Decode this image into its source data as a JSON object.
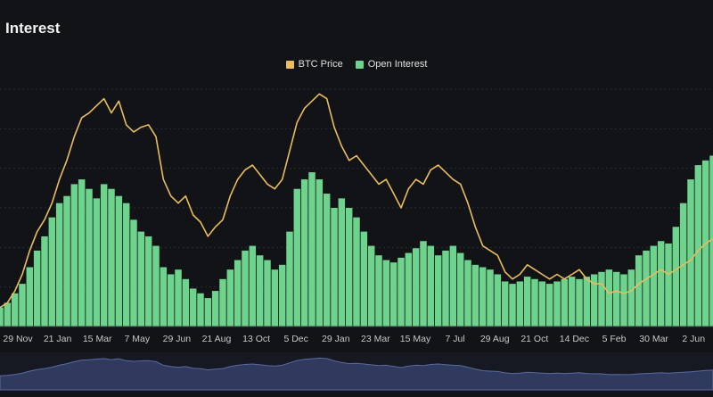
{
  "header": {
    "title": "Interest"
  },
  "colors": {
    "price": "#e9bd5b",
    "oi": "#6ed38c",
    "navigator": "#2f3a5e",
    "navigator_line": "#5a6aa0",
    "grid": "#2a2d33"
  },
  "chart_data": {
    "type": "line",
    "title": "",
    "xlabel": "",
    "ylabel": "",
    "legend": "top-center",
    "grid": true,
    "x_tick_labels": [
      "29 Nov",
      "21 Jan",
      "15 Mar",
      "7 May",
      "29 Jun",
      "21 Aug",
      "13 Oct",
      "5 Dec",
      "29 Jan",
      "23 Mar",
      "15 May",
      "7 Jul",
      "29 Aug",
      "21 Oct",
      "14 Dec",
      "5 Feb",
      "30 Mar",
      "2 Jun"
    ],
    "series": [
      {
        "name": "BTC Price",
        "kind": "line",
        "color": "#e9bd5b",
        "values": [
          0.08,
          0.1,
          0.15,
          0.22,
          0.32,
          0.4,
          0.45,
          0.52,
          0.62,
          0.7,
          0.8,
          0.88,
          0.9,
          0.93,
          0.96,
          0.9,
          0.95,
          0.85,
          0.82,
          0.84,
          0.85,
          0.8,
          0.62,
          0.55,
          0.52,
          0.55,
          0.47,
          0.44,
          0.38,
          0.42,
          0.45,
          0.55,
          0.62,
          0.66,
          0.68,
          0.64,
          0.6,
          0.58,
          0.62,
          0.74,
          0.86,
          0.92,
          0.95,
          0.98,
          0.96,
          0.84,
          0.76,
          0.7,
          0.72,
          0.68,
          0.64,
          0.6,
          0.62,
          0.56,
          0.5,
          0.58,
          0.62,
          0.6,
          0.66,
          0.68,
          0.65,
          0.62,
          0.6,
          0.52,
          0.42,
          0.34,
          0.32,
          0.3,
          0.23,
          0.2,
          0.22,
          0.26,
          0.24,
          0.22,
          0.2,
          0.22,
          0.2,
          0.22,
          0.24,
          0.2,
          0.18,
          0.18,
          0.14,
          0.15,
          0.14,
          0.15,
          0.18,
          0.2,
          0.22,
          0.24,
          0.22,
          0.24,
          0.26,
          0.28,
          0.32,
          0.35,
          0.37
        ]
      },
      {
        "name": "Open Interest",
        "kind": "area",
        "color": "#6ed38c",
        "values": [
          0.08,
          0.1,
          0.14,
          0.18,
          0.25,
          0.32,
          0.38,
          0.46,
          0.52,
          0.55,
          0.6,
          0.62,
          0.58,
          0.54,
          0.6,
          0.58,
          0.55,
          0.52,
          0.45,
          0.4,
          0.38,
          0.34,
          0.25,
          0.22,
          0.24,
          0.2,
          0.16,
          0.14,
          0.12,
          0.15,
          0.2,
          0.24,
          0.28,
          0.32,
          0.34,
          0.3,
          0.28,
          0.24,
          0.26,
          0.4,
          0.58,
          0.62,
          0.65,
          0.62,
          0.56,
          0.5,
          0.54,
          0.5,
          0.46,
          0.4,
          0.34,
          0.3,
          0.28,
          0.27,
          0.29,
          0.31,
          0.33,
          0.36,
          0.34,
          0.3,
          0.32,
          0.34,
          0.31,
          0.28,
          0.26,
          0.25,
          0.24,
          0.22,
          0.19,
          0.18,
          0.19,
          0.21,
          0.2,
          0.19,
          0.18,
          0.19,
          0.2,
          0.21,
          0.2,
          0.21,
          0.22,
          0.23,
          0.24,
          0.23,
          0.22,
          0.24,
          0.3,
          0.32,
          0.34,
          0.36,
          0.35,
          0.42,
          0.52,
          0.62,
          0.68,
          0.7,
          0.72
        ]
      }
    ]
  }
}
